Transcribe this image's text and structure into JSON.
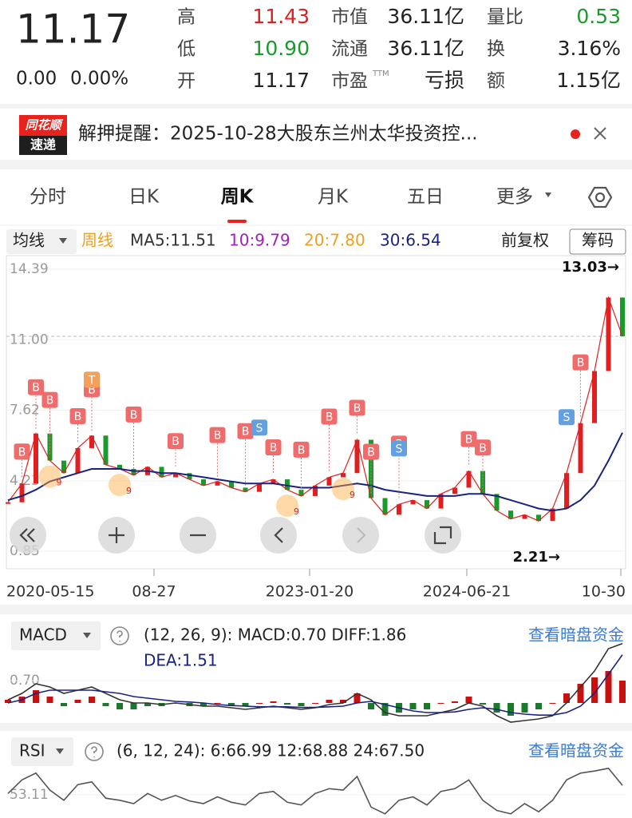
{
  "quote": {
    "price": "11.17",
    "change": "0.00",
    "change_pct": "0.00%",
    "fields": [
      {
        "label": "高",
        "value": "11.43",
        "color": "#e02020"
      },
      {
        "label": "低",
        "value": "10.90",
        "color": "#1a9a2a"
      },
      {
        "label": "开",
        "value": "11.17",
        "color": "#222222"
      },
      {
        "label": "市值",
        "value": "36.11亿",
        "color": "#222222"
      },
      {
        "label": "流通",
        "value": "36.11亿",
        "color": "#222222"
      },
      {
        "label": "市盈",
        "sup": "TTM",
        "value": "亏损",
        "color": "#222222"
      },
      {
        "label": "量比",
        "value": "0.53",
        "color": "#1a9a2a"
      },
      {
        "label": "换",
        "value": "3.16%",
        "color": "#222222"
      },
      {
        "label": "额",
        "value": "1.15亿",
        "color": "#222222"
      }
    ]
  },
  "news": {
    "logo_top": "同花顺",
    "logo_bottom": "速递",
    "text": "解押提醒：2025-10-28大股东兰州太华投资控..."
  },
  "tabs": [
    "分时",
    "日K",
    "周K",
    "月K",
    "五日",
    "更多"
  ],
  "active_tab": 2,
  "legend": {
    "ma_menu": "均线",
    "period": "周线",
    "ma": [
      {
        "text": "MA5:11.51",
        "color": "#333333"
      },
      {
        "text": "10:9.79",
        "color": "#a020c0"
      },
      {
        "text": "20:7.80",
        "color": "#f0a020"
      },
      {
        "text": "30:6.54",
        "color": "#1a237e"
      }
    ],
    "adjust": "前复权",
    "chips": "筹码"
  },
  "markers": {
    "buy": "B",
    "sell": "S",
    "t": "T",
    "nine": "9"
  },
  "chart_data": [
    {
      "type": "line",
      "ylim": [
        0.85,
        14.39
      ],
      "yticks": [
        14.39,
        {
          "value": 11.0,
          "label": "11.00"
        },
        {
          "value": 7.62,
          "label": "7.62"
        },
        {
          "value": 4.23,
          "label": "4.23"
        },
        0.85
      ],
      "x_labels": [
        "2020-05-15",
        "08-27",
        "2023-01-20",
        "2024-06-21",
        "10-30"
      ],
      "high_label": "13.03→",
      "low_label": "2.21→",
      "series": [
        {
          "name": "close",
          "color": "#e02020",
          "values": [
            3.2,
            4.1,
            6.5,
            5.2,
            4.6,
            5.8,
            6.4,
            5.0,
            4.8,
            4.5,
            4.9,
            4.4,
            4.6,
            4.3,
            4.0,
            4.2,
            3.9,
            3.7,
            4.1,
            4.3,
            3.8,
            3.5,
            4.0,
            4.4,
            4.6,
            6.2,
            3.4,
            2.6,
            3.1,
            3.3,
            2.9,
            3.6,
            3.9,
            4.7,
            3.6,
            2.8,
            2.4,
            2.6,
            2.3,
            2.9,
            4.6,
            7.0,
            9.5,
            13.03,
            11.17
          ]
        },
        {
          "name": "ma30",
          "color": "#1a237e",
          "values": [
            3.3,
            3.5,
            3.8,
            4.2,
            4.4,
            4.6,
            4.8,
            4.8,
            4.8,
            4.7,
            4.7,
            4.6,
            4.6,
            4.5,
            4.4,
            4.3,
            4.2,
            4.1,
            4.1,
            4.1,
            4.0,
            3.9,
            3.9,
            3.9,
            4.0,
            4.1,
            4.0,
            3.8,
            3.7,
            3.6,
            3.5,
            3.5,
            3.5,
            3.6,
            3.6,
            3.5,
            3.3,
            3.1,
            2.9,
            2.8,
            2.9,
            3.3,
            4.0,
            5.2,
            6.54
          ]
        }
      ]
    },
    {
      "type": "macd",
      "title": "MACD",
      "params": "(12, 26, 9):  MACD:0.70  DIFF:1.86",
      "dea_text": "DEA:1.51",
      "link": "查看暗盘资金",
      "ylim": [
        -0.5,
        1.9
      ],
      "yticks": [
        {
          "value": 0.7,
          "label": "0.70"
        }
      ],
      "series": [
        {
          "name": "hist",
          "color": "#d01010",
          "values": [
            0.1,
            0.2,
            0.4,
            0.2,
            -0.1,
            0.1,
            0.2,
            -0.1,
            -0.2,
            -0.2,
            -0.1,
            -0.1,
            0,
            -0.1,
            -0.1,
            0,
            -0.1,
            -0.1,
            0,
            0.05,
            -0.05,
            -0.1,
            0,
            0.1,
            0.1,
            0.3,
            -0.2,
            -0.4,
            -0.3,
            -0.2,
            -0.2,
            0,
            0.05,
            0.2,
            -0.05,
            -0.3,
            -0.4,
            -0.3,
            -0.2,
            0,
            0.3,
            0.6,
            0.8,
            1.0,
            0.7
          ]
        },
        {
          "name": "diff",
          "color": "#333333",
          "values": [
            0.1,
            0.3,
            0.6,
            0.5,
            0.3,
            0.4,
            0.5,
            0.3,
            0.1,
            0,
            0,
            -0.05,
            0,
            -0.05,
            -0.1,
            -0.1,
            -0.15,
            -0.2,
            -0.15,
            -0.1,
            -0.15,
            -0.2,
            -0.15,
            -0.05,
            0,
            0.3,
            0.1,
            -0.3,
            -0.4,
            -0.4,
            -0.4,
            -0.3,
            -0.2,
            0,
            -0.1,
            -0.4,
            -0.6,
            -0.55,
            -0.5,
            -0.4,
            0,
            0.5,
            1.0,
            1.7,
            1.86
          ]
        },
        {
          "name": "dea",
          "color": "#1a237e",
          "values": [
            0,
            0.1,
            0.3,
            0.4,
            0.4,
            0.4,
            0.4,
            0.35,
            0.3,
            0.2,
            0.15,
            0.1,
            0.05,
            0.03,
            0,
            -0.05,
            -0.08,
            -0.1,
            -0.12,
            -0.12,
            -0.12,
            -0.14,
            -0.14,
            -0.12,
            -0.1,
            0,
            0.05,
            -0.05,
            -0.15,
            -0.25,
            -0.3,
            -0.3,
            -0.28,
            -0.2,
            -0.15,
            -0.2,
            -0.3,
            -0.35,
            -0.38,
            -0.38,
            -0.3,
            -0.1,
            0.3,
            0.9,
            1.51
          ]
        }
      ]
    },
    {
      "type": "rsi",
      "title": "RSI",
      "params": "(6, 12, 24):  6:66.99  12:68.88  24:67.50",
      "link": "查看暗盘资金",
      "ylim": [
        0,
        100
      ],
      "yticks": [
        53.11
      ],
      "series": [
        {
          "name": "rsi6",
          "color": "#555555",
          "values": [
            55,
            75,
            85,
            60,
            45,
            68,
            72,
            48,
            45,
            40,
            55,
            45,
            52,
            44,
            40,
            50,
            42,
            38,
            55,
            58,
            42,
            38,
            55,
            62,
            60,
            80,
            35,
            25,
            45,
            50,
            38,
            58,
            62,
            75,
            45,
            30,
            25,
            40,
            28,
            45,
            75,
            85,
            88,
            92,
            66.99
          ]
        }
      ]
    }
  ]
}
